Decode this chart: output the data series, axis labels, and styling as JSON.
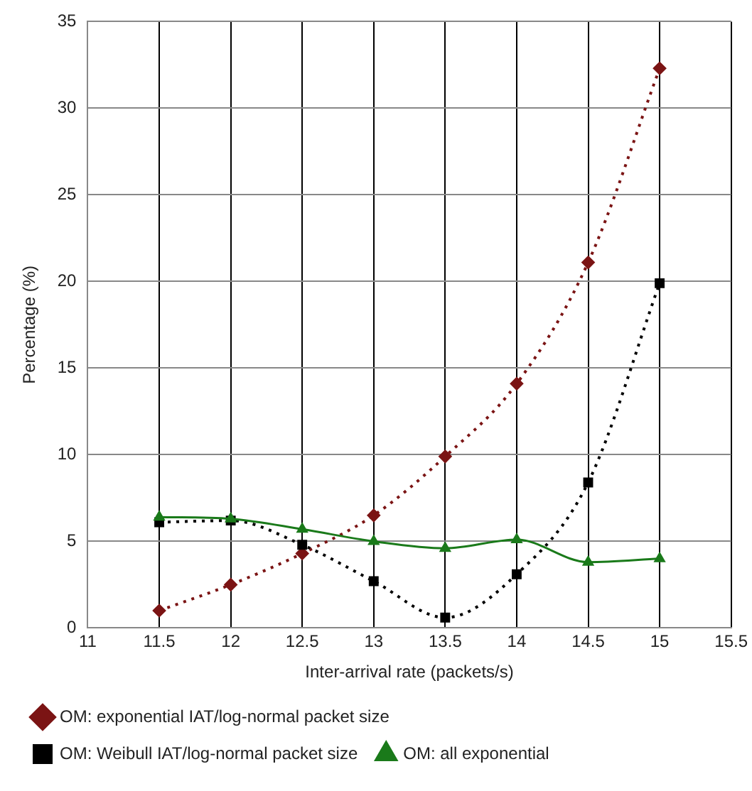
{
  "chart_data": {
    "type": "line",
    "xlabel": "Inter-arrival rate (packets/s)",
    "ylabel": "Percentage (%)",
    "x": [
      11.5,
      12,
      12.5,
      13,
      13.5,
      14,
      14.5,
      15
    ],
    "series": [
      {
        "name": "OM: exponential IAT/log-normal packet size",
        "color": "#7b1414",
        "marker": "diamond",
        "line_style": "dotted",
        "values": [
          1.0,
          2.5,
          4.3,
          6.5,
          9.9,
          14.1,
          21.1,
          32.3
        ]
      },
      {
        "name": "OM: Weibull IAT/log-normal packet size",
        "color": "#000000",
        "marker": "square",
        "line_style": "dotted",
        "values": [
          6.1,
          6.2,
          4.8,
          2.7,
          0.6,
          3.1,
          8.4,
          19.9
        ]
      },
      {
        "name": "OM: all exponential",
        "color": "#1a7a1a",
        "marker": "triangle",
        "line_style": "solid",
        "values": [
          6.4,
          6.3,
          5.7,
          5.0,
          4.6,
          5.1,
          3.8,
          4.0
        ]
      }
    ],
    "xlim": [
      11,
      15.5
    ],
    "xticks": [
      11,
      11.5,
      12,
      12.5,
      13,
      13.5,
      14,
      14.5,
      15,
      15.5
    ],
    "ylim": [
      0,
      35
    ],
    "yticks": [
      0,
      5,
      10,
      15,
      20,
      25,
      30,
      35
    ],
    "grid": true,
    "legend": "bottom"
  }
}
